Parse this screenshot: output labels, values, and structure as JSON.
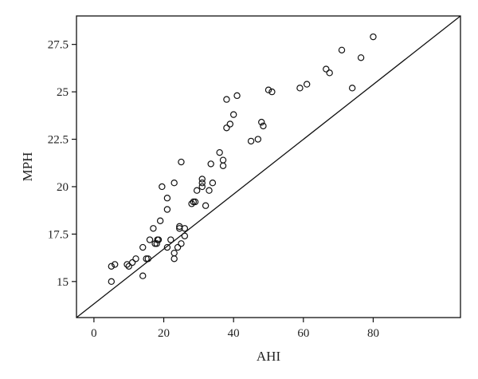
{
  "chart_data": {
    "type": "scatter",
    "title": "",
    "xlabel": "AHI",
    "ylabel": "MPH",
    "xlim": [
      -5,
      105
    ],
    "ylim": [
      13.1,
      29.0
    ],
    "x_ticks": [
      0,
      20,
      40,
      60,
      80
    ],
    "x_tick_labels": [
      "0",
      "20",
      "40",
      "60",
      "80"
    ],
    "y_ticks": [
      15,
      17.5,
      20,
      22.5,
      25,
      27.5
    ],
    "y_tick_labels": [
      "15",
      "17.5",
      "20",
      "22.5",
      "25",
      "27.5"
    ],
    "grid": false,
    "legend": "none",
    "series": [
      {
        "values": [
          [
            5,
            15.0
          ],
          [
            5,
            15.8
          ],
          [
            6,
            15.9
          ],
          [
            9.5,
            15.9
          ],
          [
            10,
            15.8
          ],
          [
            11,
            16.0
          ],
          [
            12,
            16.2
          ],
          [
            14,
            15.3
          ],
          [
            14,
            16.8
          ],
          [
            15,
            16.2
          ],
          [
            15.5,
            16.2
          ],
          [
            16,
            17.2
          ],
          [
            17,
            17.8
          ],
          [
            17.5,
            17.0
          ],
          [
            18,
            17.0
          ],
          [
            18.2,
            17.2
          ],
          [
            18.5,
            17.2
          ],
          [
            19,
            18.2
          ],
          [
            19.5,
            20.0
          ],
          [
            21,
            19.4
          ],
          [
            21,
            18.8
          ],
          [
            21,
            16.8
          ],
          [
            22,
            17.2
          ],
          [
            23,
            16.2
          ],
          [
            23,
            16.5
          ],
          [
            23,
            20.2
          ],
          [
            24,
            16.8
          ],
          [
            24.5,
            17.8
          ],
          [
            24.5,
            17.9
          ],
          [
            25,
            17.0
          ],
          [
            25,
            21.3
          ],
          [
            26,
            17.8
          ],
          [
            26,
            17.4
          ],
          [
            28,
            19.1
          ],
          [
            28.5,
            19.2
          ],
          [
            29,
            19.2
          ],
          [
            29.5,
            19.8
          ],
          [
            31,
            20.0
          ],
          [
            31,
            20.2
          ],
          [
            31,
            20.4
          ],
          [
            32,
            19.0
          ],
          [
            33,
            19.8
          ],
          [
            33.5,
            21.2
          ],
          [
            34,
            20.2
          ],
          [
            36,
            21.8
          ],
          [
            37,
            21.4
          ],
          [
            37,
            21.1
          ],
          [
            38,
            24.6
          ],
          [
            38,
            23.1
          ],
          [
            39,
            23.3
          ],
          [
            40,
            23.8
          ],
          [
            41,
            24.8
          ],
          [
            45,
            22.4
          ],
          [
            47,
            22.5
          ],
          [
            48,
            23.4
          ],
          [
            48.5,
            23.2
          ],
          [
            50,
            25.1
          ],
          [
            51,
            25.0
          ],
          [
            59,
            25.2
          ],
          [
            61,
            25.4
          ],
          [
            66.5,
            26.2
          ],
          [
            67.5,
            26.0
          ],
          [
            71,
            27.2
          ],
          [
            74,
            25.2
          ],
          [
            76.5,
            26.8
          ],
          [
            80,
            27.9
          ]
        ]
      }
    ],
    "fit_line": {
      "x": [
        -5,
        105
      ],
      "y": [
        13.1,
        29.0
      ]
    }
  }
}
